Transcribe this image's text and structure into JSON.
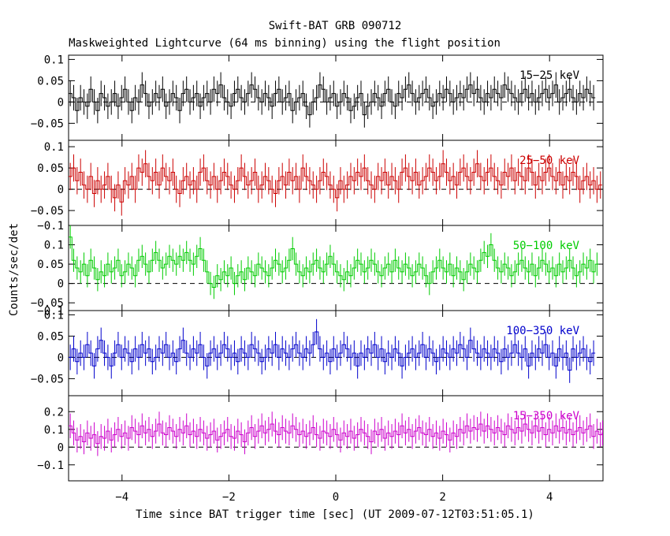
{
  "chart_data": {
    "type": "line",
    "title": "Swift-BAT GRB 090712",
    "subtitle": "Maskweighted Lightcurve (64 ms binning) using the flight position",
    "xlabel": "Time since BAT trigger time [sec] (UT 2009-07-12T03:51:05.1)",
    "ylabel": "Counts/sec/det",
    "xlim": [
      -5.0,
      5.0
    ],
    "x_ticks": [
      -4,
      -2,
      0,
      2,
      4
    ],
    "x_tick_labels": [
      "−4",
      "−2",
      "0",
      "2",
      "4"
    ],
    "bin_width_s": 0.064,
    "x_start": -5.0,
    "panels": [
      {
        "label": "15−25 keV",
        "color": "#000000",
        "ylim": [
          -0.09,
          0.11
        ],
        "y_ticks": [
          0.1,
          0.05,
          0,
          -0.05
        ],
        "y_tick_labels": [
          "0.1",
          "0.05",
          "0",
          "−0.05"
        ],
        "error": 0.03,
        "values": [
          0.02,
          0.01,
          -0.02,
          0.01,
          0.0,
          -0.01,
          0.03,
          0.0,
          -0.02,
          0.02,
          0.01,
          -0.01,
          0.0,
          0.02,
          -0.01,
          0.01,
          0.03,
          0.0,
          -0.02,
          0.01,
          0.0,
          0.04,
          0.02,
          -0.01,
          0.0,
          0.02,
          0.01,
          0.03,
          -0.01,
          0.0,
          0.02,
          0.01,
          -0.02,
          0.02,
          0.03,
          0.0,
          0.01,
          0.02,
          -0.01,
          0.01,
          0.02,
          0.0,
          0.03,
          0.02,
          0.04,
          0.01,
          0.0,
          -0.01,
          0.02,
          0.03,
          0.01,
          0.0,
          0.02,
          0.04,
          0.03,
          0.01,
          0.0,
          0.02,
          0.01,
          -0.01,
          0.02,
          0.03,
          0.0,
          0.01,
          0.02,
          -0.02,
          0.0,
          0.01,
          0.02,
          -0.01,
          -0.03,
          0.0,
          0.01,
          0.04,
          0.03,
          0.0,
          0.01,
          0.02,
          -0.01,
          0.0,
          0.02,
          0.01,
          -0.02,
          -0.01,
          0.01,
          0.02,
          -0.03,
          -0.01,
          0.0,
          0.02,
          0.01,
          -0.01,
          0.02,
          0.03,
          0.0,
          -0.01,
          0.02,
          0.01,
          0.03,
          0.04,
          0.02,
          0.0,
          0.01,
          0.02,
          0.03,
          0.01,
          -0.01,
          0.0,
          0.02,
          0.01,
          0.03,
          0.02,
          0.0,
          0.01,
          0.02,
          0.01,
          0.03,
          0.04,
          0.02,
          0.03,
          0.01,
          0.0,
          0.02,
          0.01,
          0.03,
          0.02,
          0.01,
          0.04,
          0.03,
          0.02,
          0.01,
          0.0,
          0.02,
          0.03,
          0.01,
          0.02,
          0.0,
          0.01,
          0.02,
          0.03,
          0.01,
          0.02,
          0.04,
          0.0,
          0.01,
          0.02,
          0.03,
          0.01,
          0.0,
          0.02,
          0.01,
          0.03,
          0.02,
          0.01
        ]
      },
      {
        "label": "25−50 keV",
        "color": "#cc0000",
        "ylim": [
          -0.085,
          0.115
        ],
        "y_ticks": [
          0.1,
          0.05,
          0,
          -0.05
        ],
        "y_tick_labels": [
          "0.1",
          "0.05",
          "0",
          "−0.05"
        ],
        "extra_tick_labels": [
          "−0.1"
        ],
        "error": 0.032,
        "values": [
          0.03,
          0.05,
          0.02,
          0.04,
          0.01,
          0.0,
          0.03,
          -0.01,
          0.02,
          0.0,
          0.01,
          0.03,
          0.0,
          -0.02,
          0.01,
          -0.03,
          0.02,
          0.01,
          0.03,
          0.0,
          0.05,
          0.04,
          0.06,
          0.03,
          0.02,
          0.04,
          0.01,
          0.05,
          0.03,
          0.02,
          0.04,
          0.0,
          -0.01,
          0.02,
          0.03,
          0.01,
          0.02,
          0.0,
          0.04,
          0.05,
          0.02,
          0.01,
          0.03,
          0.0,
          0.02,
          0.04,
          0.03,
          0.01,
          0.0,
          0.02,
          0.05,
          0.03,
          0.01,
          0.02,
          0.04,
          0.0,
          0.01,
          0.03,
          0.02,
          0.0,
          -0.01,
          0.02,
          0.03,
          0.01,
          0.04,
          0.02,
          0.03,
          0.0,
          0.05,
          0.03,
          0.02,
          0.01,
          0.0,
          0.02,
          0.04,
          0.03,
          0.01,
          0.0,
          -0.02,
          0.02,
          0.0,
          0.01,
          0.03,
          0.02,
          0.04,
          0.03,
          0.05,
          0.02,
          0.01,
          0.0,
          0.03,
          0.02,
          0.04,
          0.01,
          0.03,
          0.02,
          0.0,
          0.04,
          0.05,
          0.03,
          0.02,
          0.04,
          0.01,
          0.02,
          0.03,
          0.05,
          0.04,
          0.02,
          0.03,
          0.06,
          0.04,
          0.02,
          0.03,
          0.01,
          0.04,
          0.05,
          0.03,
          0.02,
          0.04,
          0.06,
          0.03,
          0.02,
          0.04,
          0.05,
          0.03,
          0.02,
          0.01,
          0.04,
          0.03,
          0.05,
          0.02,
          0.04,
          0.03,
          0.02,
          0.05,
          0.04,
          0.01,
          0.03,
          0.02,
          0.04,
          0.05,
          0.03,
          0.02,
          0.04,
          0.01,
          0.03,
          0.02,
          0.04,
          0.03,
          0.0,
          0.02,
          0.03,
          0.01,
          0.02,
          0.0,
          0.01
        ]
      },
      {
        "label": "50−100 keV",
        "color": "#00cc00",
        "ylim": [
          -0.07,
          0.15
        ],
        "y_ticks": [
          0.1,
          0.05,
          0,
          -0.05
        ],
        "y_tick_labels": [
          "0.1",
          "0.05",
          "0",
          "−0.05"
        ],
        "extra_tick_labels": [
          "−0.1"
        ],
        "error": 0.03,
        "values": [
          0.12,
          0.06,
          0.04,
          0.03,
          0.05,
          0.02,
          0.06,
          0.04,
          0.01,
          0.03,
          0.02,
          0.05,
          0.03,
          0.04,
          0.06,
          0.02,
          0.03,
          0.05,
          0.04,
          0.02,
          0.06,
          0.07,
          0.05,
          0.03,
          0.06,
          0.08,
          0.06,
          0.04,
          0.05,
          0.07,
          0.06,
          0.05,
          0.07,
          0.06,
          0.08,
          0.06,
          0.05,
          0.07,
          0.09,
          0.06,
          0.03,
          0.0,
          -0.01,
          0.02,
          0.01,
          0.03,
          0.02,
          0.04,
          0.0,
          0.02,
          0.03,
          0.01,
          0.04,
          0.03,
          0.02,
          0.05,
          0.04,
          0.03,
          0.02,
          0.04,
          0.06,
          0.05,
          0.03,
          0.04,
          0.06,
          0.09,
          0.05,
          0.03,
          0.02,
          0.04,
          0.03,
          0.05,
          0.06,
          0.04,
          0.03,
          0.05,
          0.07,
          0.05,
          0.03,
          0.02,
          0.01,
          0.03,
          0.02,
          0.04,
          0.06,
          0.05,
          0.03,
          0.04,
          0.06,
          0.05,
          0.03,
          0.02,
          0.04,
          0.05,
          0.03,
          0.06,
          0.04,
          0.03,
          0.05,
          0.04,
          0.02,
          0.03,
          0.05,
          0.04,
          0.02,
          0.0,
          0.03,
          0.04,
          0.06,
          0.04,
          0.03,
          0.05,
          0.02,
          0.04,
          0.03,
          0.01,
          0.03,
          0.05,
          0.04,
          0.03,
          0.06,
          0.08,
          0.07,
          0.1,
          0.06,
          0.04,
          0.03,
          0.05,
          0.04,
          0.02,
          0.03,
          0.05,
          0.06,
          0.04,
          0.03,
          0.05,
          0.02,
          0.04,
          0.06,
          0.05,
          0.03,
          0.04,
          0.02,
          0.05,
          0.03,
          0.04,
          0.06,
          0.04,
          0.02,
          0.03,
          0.05,
          0.04,
          0.06,
          0.03,
          0.05
        ]
      },
      {
        "label": "100−350 keV",
        "color": "#0000cc",
        "ylim": [
          -0.09,
          0.11
        ],
        "y_ticks": [
          0.1,
          0.05,
          0,
          -0.05
        ],
        "y_tick_labels": [
          "0.1",
          "0.05",
          "0",
          "−0.05"
        ],
        "error": 0.03,
        "values": [
          0.0,
          0.02,
          -0.01,
          0.01,
          0.0,
          0.03,
          0.01,
          -0.02,
          0.02,
          0.04,
          0.01,
          0.0,
          -0.02,
          0.01,
          0.03,
          0.0,
          0.02,
          0.01,
          -0.01,
          0.02,
          0.0,
          0.03,
          0.01,
          0.02,
          -0.01,
          0.0,
          0.02,
          0.01,
          0.03,
          0.0,
          0.01,
          -0.01,
          0.02,
          0.04,
          0.01,
          0.0,
          0.02,
          0.01,
          0.03,
          0.0,
          -0.02,
          0.01,
          0.02,
          0.0,
          0.01,
          0.03,
          0.02,
          0.0,
          0.01,
          -0.01,
          0.02,
          0.01,
          0.0,
          0.03,
          0.02,
          0.01,
          -0.01,
          0.0,
          0.02,
          0.01,
          0.03,
          0.0,
          0.02,
          0.01,
          0.0,
          0.02,
          0.03,
          0.01,
          0.0,
          0.02,
          0.01,
          0.03,
          0.06,
          0.02,
          0.0,
          0.01,
          -0.01,
          0.02,
          0.0,
          0.01,
          0.03,
          0.02,
          0.0,
          0.01,
          -0.02,
          0.01,
          0.0,
          0.02,
          0.01,
          0.03,
          0.0,
          0.02,
          -0.01,
          0.01,
          0.0,
          0.02,
          0.01,
          -0.02,
          0.0,
          0.01,
          0.02,
          0.0,
          0.01,
          0.03,
          0.0,
          0.02,
          0.01,
          -0.01,
          0.0,
          0.02,
          0.01,
          0.0,
          0.02,
          0.01,
          0.03,
          0.02,
          0.0,
          0.04,
          0.02,
          0.01,
          0.0,
          0.02,
          0.01,
          0.0,
          0.02,
          0.01,
          -0.01,
          0.02,
          0.0,
          0.01,
          0.03,
          0.01,
          0.0,
          0.02,
          -0.02,
          0.01,
          0.0,
          0.02,
          0.01,
          0.03,
          0.0,
          0.01,
          -0.02,
          0.02,
          0.0,
          0.01,
          -0.03,
          0.02,
          0.0,
          0.01,
          0.02,
          0.0,
          -0.01,
          0.01
        ]
      },
      {
        "label": "15−350 keV",
        "color": "#cc00cc",
        "ylim": [
          -0.19,
          0.29
        ],
        "y_ticks": [
          0.2,
          0.1,
          0,
          -0.1
        ],
        "y_tick_labels": [
          "0.2",
          "0.1",
          "0",
          "−0.1"
        ],
        "error": 0.07,
        "values": [
          0.12,
          0.08,
          0.04,
          0.06,
          0.03,
          0.08,
          0.05,
          0.07,
          0.02,
          0.06,
          0.05,
          0.09,
          0.04,
          0.07,
          0.1,
          0.06,
          0.08,
          0.05,
          0.11,
          0.09,
          0.07,
          0.12,
          0.08,
          0.1,
          0.06,
          0.09,
          0.13,
          0.08,
          0.07,
          0.11,
          0.09,
          0.06,
          0.1,
          0.08,
          0.12,
          0.07,
          0.09,
          0.06,
          0.1,
          0.08,
          0.05,
          0.07,
          0.09,
          0.04,
          0.06,
          0.08,
          0.1,
          0.06,
          0.05,
          0.09,
          0.07,
          0.03,
          0.08,
          0.11,
          0.06,
          0.09,
          0.12,
          0.08,
          0.1,
          0.13,
          0.09,
          0.07,
          0.11,
          0.09,
          0.08,
          0.12,
          0.1,
          0.07,
          0.09,
          0.06,
          0.08,
          0.11,
          0.07,
          0.05,
          0.09,
          0.08,
          0.06,
          0.1,
          0.07,
          0.04,
          0.08,
          0.06,
          0.09,
          0.05,
          0.07,
          0.1,
          0.08,
          0.06,
          0.03,
          0.09,
          0.07,
          0.1,
          0.05,
          0.08,
          0.06,
          0.09,
          0.07,
          0.12,
          0.08,
          0.1,
          0.06,
          0.09,
          0.11,
          0.08,
          0.07,
          0.1,
          0.06,
          0.08,
          0.05,
          0.09,
          0.07,
          0.04,
          0.08,
          0.06,
          0.1,
          0.08,
          0.12,
          0.09,
          0.11,
          0.1,
          0.13,
          0.09,
          0.12,
          0.1,
          0.08,
          0.11,
          0.09,
          0.07,
          0.12,
          0.1,
          0.08,
          0.11,
          0.09,
          0.13,
          0.1,
          0.08,
          0.12,
          0.09,
          0.11,
          0.07,
          0.1,
          0.08,
          0.12,
          0.09,
          0.11,
          0.08,
          0.1,
          0.07,
          0.09,
          0.11,
          0.08,
          0.1,
          0.12,
          0.06,
          0.09,
          0.07,
          0.08
        ]
      }
    ]
  }
}
